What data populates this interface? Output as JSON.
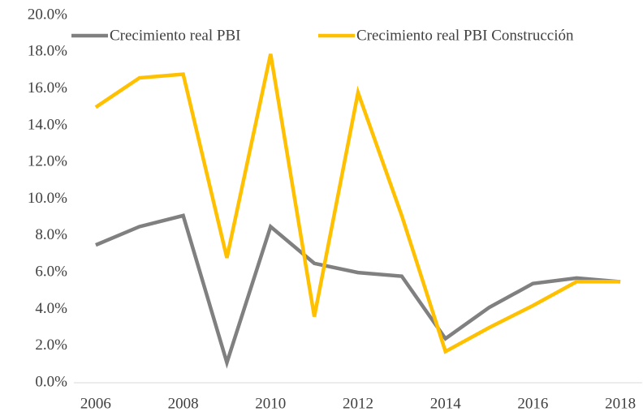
{
  "chart_data": {
    "type": "line",
    "x": [
      2006,
      2007,
      2008,
      2009,
      2010,
      2011,
      2012,
      2013,
      2014,
      2015,
      2016,
      2017,
      2018
    ],
    "series": [
      {
        "name": "Crecimiento real PBI",
        "color": "#808080",
        "values": [
          7.5,
          8.5,
          9.1,
          1.1,
          8.5,
          6.5,
          6.0,
          5.8,
          2.4,
          4.1,
          5.4,
          5.7,
          5.5
        ]
      },
      {
        "name": "Crecimiento real PBI Construcción",
        "color": "#ffc000",
        "values": [
          15.0,
          16.6,
          16.8,
          6.8,
          17.9,
          3.6,
          15.8,
          9.1,
          1.7,
          3.0,
          4.2,
          5.5,
          5.5
        ]
      }
    ],
    "xlim": [
      2005.5,
      2018.5
    ],
    "xticks": [
      2006,
      2008,
      2010,
      2012,
      2014,
      2016,
      2018
    ],
    "ylim": [
      0,
      20
    ],
    "yticks": [
      {
        "value": 0,
        "label": "0.0%"
      },
      {
        "value": 2,
        "label": "2.0%"
      },
      {
        "value": 4,
        "label": "4.0%"
      },
      {
        "value": 6,
        "label": "6.0%"
      },
      {
        "value": 8,
        "label": "8.0%"
      },
      {
        "value": 10,
        "label": "10.0%"
      },
      {
        "value": 12,
        "label": "12.0%"
      },
      {
        "value": 14,
        "label": "14.0%"
      },
      {
        "value": 16,
        "label": "16.0%"
      },
      {
        "value": 18,
        "label": "18.0%"
      },
      {
        "value": 20,
        "label": "20.0%"
      }
    ],
    "legend": "top",
    "grid": false
  }
}
